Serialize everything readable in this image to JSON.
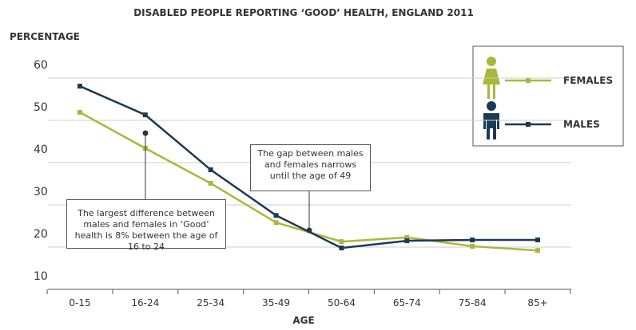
{
  "chart_data": {
    "type": "line",
    "title": "DISABLED PEOPLE REPORTING ‘GOOD’ HEALTH, ENGLAND 2011",
    "y_label": "PERCENTAGE",
    "x_label": "AGE",
    "categories": [
      "0-15",
      "16-24",
      "25-34",
      "35-49",
      "50-64",
      "65-74",
      "75-84",
      "85+"
    ],
    "series": [
      {
        "name": "FEMALES",
        "color": "#a9b83a",
        "values": [
          51.9,
          43.4,
          35.1,
          25.8,
          21.3,
          22.3,
          20.2,
          19.2
        ]
      },
      {
        "name": "MALES",
        "color": "#1b3a55",
        "values": [
          58.1,
          51.3,
          38.3,
          27.5,
          19.8,
          21.5,
          21.7,
          21.7
        ]
      }
    ],
    "ylim": [
      10,
      60
    ],
    "yticks": [
      10,
      20,
      30,
      40,
      50,
      60
    ],
    "grid": true,
    "annotations": [
      "The largest difference between males and females in ‘Good’ health is 8% between the age of 16 to 24",
      "The gap between males and females narrows until the age of 49"
    ]
  }
}
